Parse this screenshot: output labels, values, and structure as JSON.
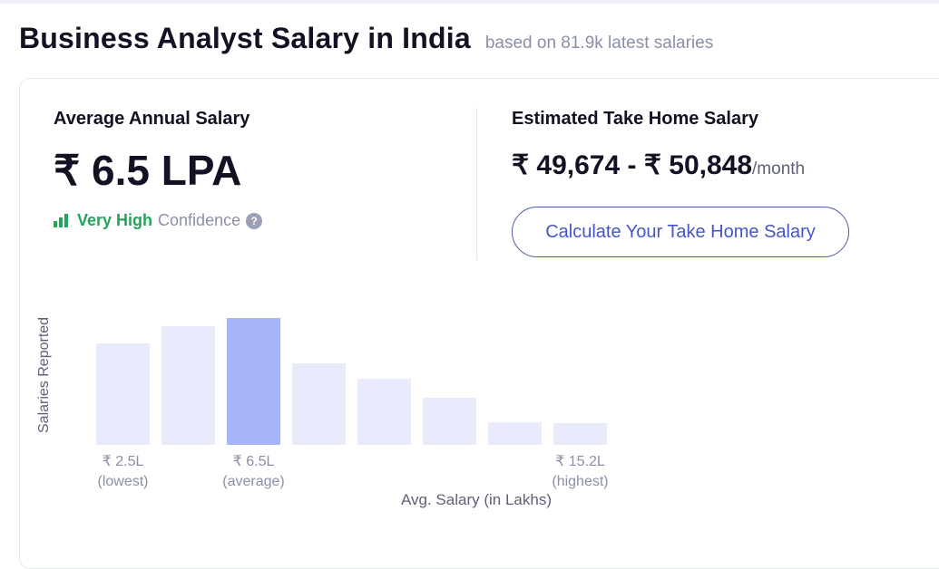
{
  "header": {
    "title": "Business Analyst Salary in India",
    "subtitle": "based on 81.9k latest salaries"
  },
  "average": {
    "label": "Average Annual Salary",
    "value": "₹ 6.5 LPA",
    "confidence_level": "Very High",
    "confidence_word": "Confidence",
    "help_symbol": "?"
  },
  "take_home": {
    "label": "Estimated Take Home Salary",
    "range": "₹ 49,674 - ₹ 50,848",
    "unit": "/month",
    "button_label": "Calculate Your Take Home Salary"
  },
  "chart_data": {
    "type": "bar",
    "ylabel": "Salaries Reported",
    "xlabel": "Avg. Salary (in Lakhs)",
    "values": [
      112,
      131,
      140,
      90,
      73,
      52,
      25,
      24
    ],
    "highlight_index": 2,
    "ylim": [
      0,
      140
    ],
    "tick_labels": [
      {
        "index": 0,
        "value": "₹ 2.5L",
        "note": "(lowest)"
      },
      {
        "index": 2,
        "value": "₹ 6.5L",
        "note": "(average)"
      },
      {
        "index": 7,
        "value": "₹ 15.2L",
        "note": "(highest)"
      }
    ],
    "colors": {
      "bar": "#e8ebfb",
      "highlight": "#a9b5f8"
    }
  },
  "colors": {
    "confidence": "#24a35a",
    "button": "#4556c8",
    "text_dark": "#121224",
    "text_muted": "#8b8fa8"
  }
}
